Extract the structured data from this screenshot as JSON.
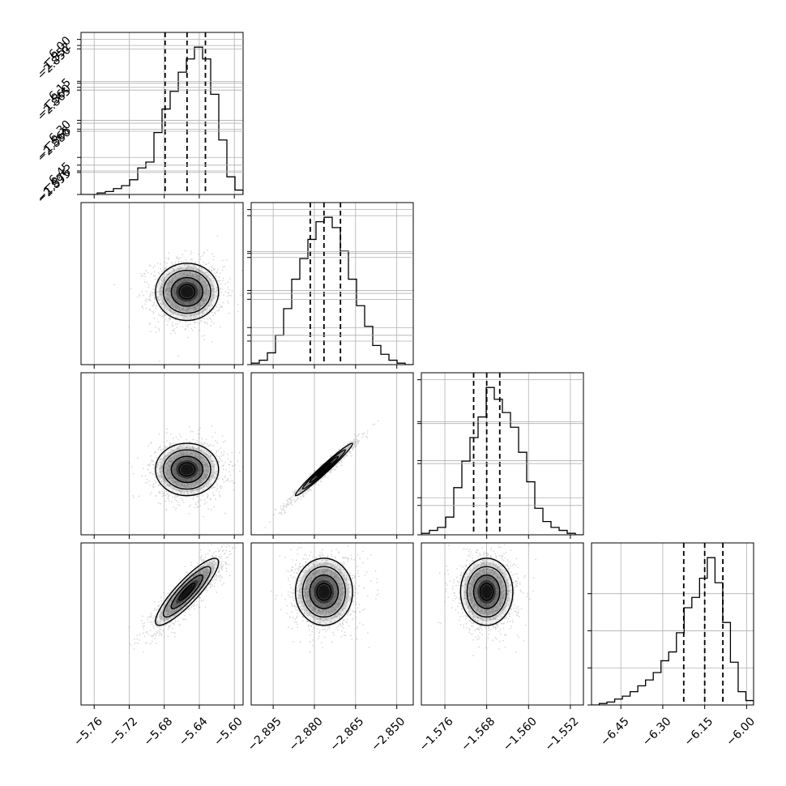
{
  "chart_data": {
    "type": "corner",
    "parameters": [
      {
        "range": [
          -5.775,
          -5.59
        ],
        "ticks": [
          -5.76,
          -5.72,
          -5.68,
          -5.64,
          -5.6
        ],
        "tick_labels": [
          "−5.76",
          "−5.72",
          "−5.68",
          "−5.64",
          "−5.60"
        ],
        "mean": -5.654,
        "sigma": 0.018,
        "quantiles": [
          -5.679,
          -5.654,
          -5.633
        ]
      },
      {
        "range": [
          -2.903,
          -2.844
        ],
        "ticks": [
          -2.895,
          -2.88,
          -2.865,
          -2.85
        ],
        "tick_labels": [
          "−2.895",
          "−2.880",
          "−2.865",
          "−2.850"
        ],
        "mean": -2.8765,
        "sigma": 0.0052,
        "quantiles": [
          -2.8815,
          -2.8765,
          -2.8705
        ]
      },
      {
        "range": [
          -1.5805,
          -1.5495
        ],
        "ticks": [
          -1.576,
          -1.568,
          -1.56,
          -1.552
        ],
        "tick_labels": [
          "−1.576",
          "−1.568",
          "−1.560",
          "−1.552"
        ],
        "mean": -1.568,
        "sigma": 0.0025,
        "quantiles": [
          -1.5705,
          -1.568,
          -1.5655
        ]
      },
      {
        "range": [
          -6.555,
          -5.975
        ],
        "ticks": [
          -6.45,
          -6.3,
          -6.15,
          -6.0
        ],
        "tick_labels": [
          "−6.45",
          "−6.30",
          "−6.15",
          "−6.00"
        ],
        "mean": -6.15,
        "sigma": 0.06,
        "quantiles": [
          -6.225,
          -6.15,
          -6.085
        ]
      }
    ],
    "histograms": [
      [
        0.0,
        0.0,
        0.01,
        0.02,
        0.04,
        0.06,
        0.1,
        0.18,
        0.22,
        0.42,
        0.58,
        0.7,
        0.83,
        0.92,
        1.0,
        0.92,
        0.68,
        0.37,
        0.12,
        0.03
      ],
      [
        0.01,
        0.03,
        0.08,
        0.2,
        0.38,
        0.58,
        0.72,
        0.85,
        0.97,
        1.0,
        0.93,
        0.77,
        0.58,
        0.4,
        0.26,
        0.13,
        0.07,
        0.03,
        0.01,
        0.0
      ],
      [
        0.01,
        0.03,
        0.05,
        0.12,
        0.32,
        0.5,
        0.66,
        0.8,
        1.0,
        0.92,
        0.83,
        0.73,
        0.56,
        0.36,
        0.18,
        0.09,
        0.05,
        0.03,
        0.01,
        0.0
      ],
      [
        0.0,
        0.01,
        0.02,
        0.04,
        0.06,
        0.09,
        0.13,
        0.17,
        0.22,
        0.3,
        0.36,
        0.49,
        0.66,
        0.73,
        0.86,
        1.0,
        0.83,
        0.56,
        0.29,
        0.09,
        0.03
      ]
    ],
    "hist_range_max": 1.1,
    "correlations": {
      "1-0": 0.0,
      "2-0": 0.0,
      "2-1": 0.98,
      "3-0": 0.88,
      "3-1": 0.0,
      "3-2": 0.0
    },
    "contour_levels_sigma": [
      0.5,
      1.0,
      1.5,
      2.0
    ],
    "grid": true,
    "line_color": "#000000",
    "point_color": "#7f7f7f",
    "grid_color": "#b0b0b0"
  }
}
